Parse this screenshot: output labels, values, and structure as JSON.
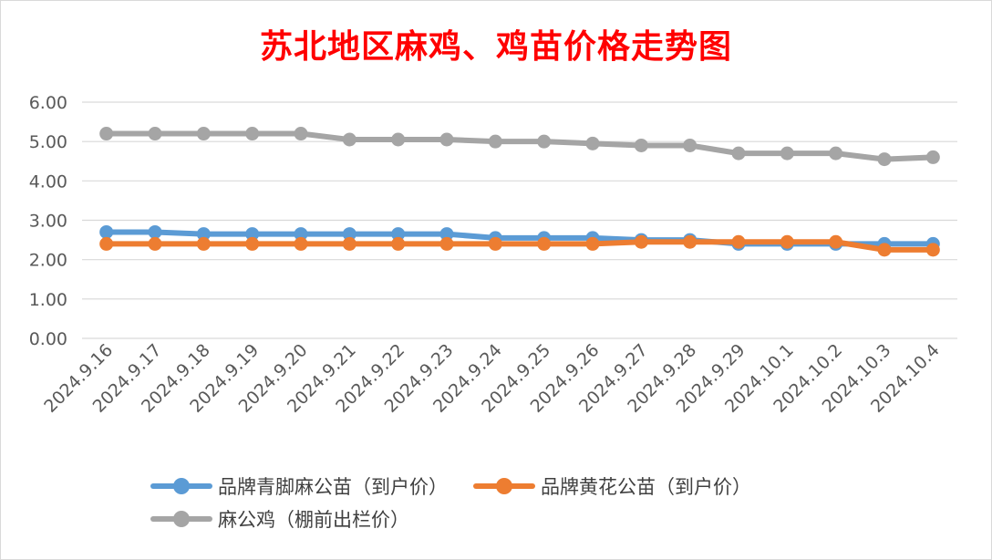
{
  "colors": {
    "series_1": "#5b9bd5",
    "series_2": "#ed7d31",
    "series_3": "#a5a5a5",
    "title": "#ff0000",
    "grid": "#d9d9d9",
    "text": "#595959"
  },
  "chart_data": {
    "type": "line",
    "title": "苏北地区麻鸡、鸡苗价格走势图",
    "xlabel": "",
    "ylabel": "",
    "ylim": [
      0,
      6
    ],
    "yticks": [
      "0.00",
      "1.00",
      "2.00",
      "3.00",
      "4.00",
      "5.00",
      "6.00"
    ],
    "grid": true,
    "legend_position": "bottom",
    "categories": [
      "2024.9.16",
      "2024.9.17",
      "2024.9.18",
      "2024.9.19",
      "2024.9.20",
      "2024.9.21",
      "2024.9.22",
      "2024.9.23",
      "2024.9.24",
      "2024.9.25",
      "2024.9.26",
      "2024.9.27",
      "2024.9.28",
      "2024.9.29",
      "2024.10.1",
      "2024.10.2",
      "2024.10.3",
      "2024.10.4"
    ],
    "series": [
      {
        "name": "品牌青脚麻公苗（到户价）",
        "values": [
          2.7,
          2.7,
          2.65,
          2.65,
          2.65,
          2.65,
          2.65,
          2.65,
          2.55,
          2.55,
          2.55,
          2.5,
          2.5,
          2.4,
          2.4,
          2.4,
          2.4,
          2.4
        ]
      },
      {
        "name": "品牌黄花公苗（到户价）",
        "values": [
          2.4,
          2.4,
          2.4,
          2.4,
          2.4,
          2.4,
          2.4,
          2.4,
          2.4,
          2.4,
          2.4,
          2.45,
          2.45,
          2.45,
          2.45,
          2.45,
          2.25,
          2.25
        ]
      },
      {
        "name": "麻公鸡（棚前出栏价）",
        "values": [
          5.2,
          5.2,
          5.2,
          5.2,
          5.2,
          5.05,
          5.05,
          5.05,
          5.0,
          5.0,
          4.95,
          4.9,
          4.9,
          4.7,
          4.7,
          4.7,
          4.55,
          4.6
        ]
      }
    ]
  }
}
